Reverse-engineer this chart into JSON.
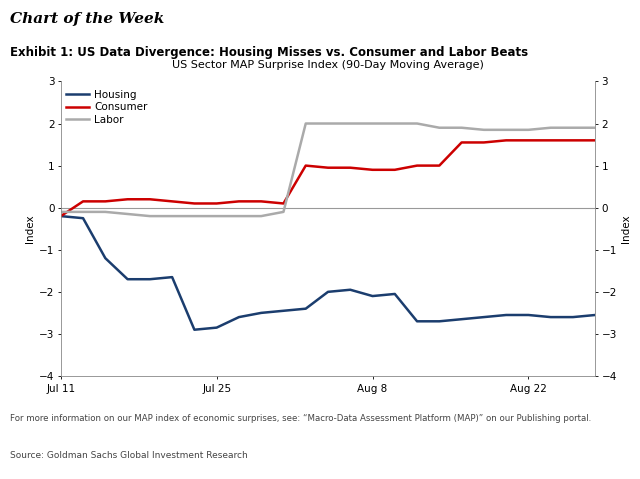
{
  "title_main": "Chart of the Week",
  "title_exhibit": "Exhibit 1: US Data Divergence: Housing Misses vs. Consumer and Labor Beats",
  "chart_title": "US Sector MAP Surprise Index (90-Day Moving Average)",
  "ylabel_left": "Index",
  "ylabel_right": "Index",
  "ylim": [
    -4,
    3
  ],
  "yticks": [
    -4,
    -3,
    -2,
    -1,
    0,
    1,
    2,
    3
  ],
  "footnote": "For more information on our MAP index of economic surprises, see: “Macro-Data Assessment Platform (MAP)” on our Publishing portal.",
  "source": "Source: Goldman Sachs Global Investment Research",
  "x_tick_labels": [
    "Jul 11",
    "Jul 25",
    "Aug 8",
    "Aug 22"
  ],
  "x_tick_positions": [
    0,
    7,
    14,
    21
  ],
  "xlim": [
    0,
    24
  ],
  "housing": {
    "label": "Housing",
    "color": "#1b3d6e",
    "x": [
      0,
      1,
      2,
      3,
      4,
      5,
      6,
      7,
      8,
      9,
      10,
      11,
      12,
      13,
      14,
      15,
      16,
      17,
      18,
      19,
      20,
      21,
      22,
      23,
      24
    ],
    "y": [
      -0.2,
      -0.25,
      -1.2,
      -1.7,
      -1.7,
      -1.65,
      -2.9,
      -2.85,
      -2.6,
      -2.5,
      -2.45,
      -2.4,
      -2.0,
      -1.95,
      -2.1,
      -2.05,
      -2.7,
      -2.7,
      -2.65,
      -2.6,
      -2.55,
      -2.55,
      -2.6,
      -2.6,
      -2.55
    ]
  },
  "consumer": {
    "label": "Consumer",
    "color": "#cc0000",
    "x": [
      0,
      1,
      2,
      3,
      4,
      5,
      6,
      7,
      8,
      9,
      10,
      11,
      12,
      13,
      14,
      15,
      16,
      17,
      18,
      19,
      20,
      21,
      22,
      23,
      24
    ],
    "y": [
      -0.2,
      0.15,
      0.15,
      0.2,
      0.2,
      0.15,
      0.1,
      0.1,
      0.15,
      0.15,
      0.1,
      1.0,
      0.95,
      0.95,
      0.9,
      0.9,
      1.0,
      1.0,
      1.55,
      1.55,
      1.6,
      1.6,
      1.6,
      1.6,
      1.6
    ]
  },
  "labor": {
    "label": "Labor",
    "color": "#aaaaaa",
    "x": [
      0,
      1,
      2,
      3,
      4,
      5,
      6,
      7,
      8,
      9,
      10,
      11,
      12,
      13,
      14,
      15,
      16,
      17,
      18,
      19,
      20,
      21,
      22,
      23,
      24
    ],
    "y": [
      -0.1,
      -0.1,
      -0.1,
      -0.15,
      -0.2,
      -0.2,
      -0.2,
      -0.2,
      -0.2,
      -0.2,
      -0.1,
      2.0,
      2.0,
      2.0,
      2.0,
      2.0,
      2.0,
      1.9,
      1.9,
      1.85,
      1.85,
      1.85,
      1.9,
      1.9,
      1.9
    ]
  },
  "background_color": "#ffffff",
  "zero_line_color": "#999999",
  "separator_color": "#bbbbbb",
  "title_fontsize": 11,
  "exhibit_fontsize": 8.5,
  "chart_title_fontsize": 8,
  "legend_fontsize": 7.5,
  "tick_fontsize": 7.5,
  "ylabel_fontsize": 7.5,
  "footnote_fontsize": 6.2,
  "source_fontsize": 6.5
}
